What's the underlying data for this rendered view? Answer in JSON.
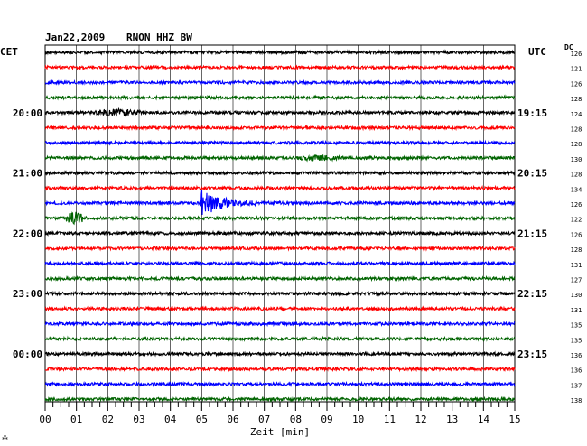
{
  "header": {
    "date": "Jan22,2009",
    "station": "RNON HHZ BW",
    "left_zone": "CET",
    "right_zone": "UTC",
    "dc_label": "DC"
  },
  "footer": {
    "xlabel": "Zeit [min]",
    "corner_mark": "⁂"
  },
  "colors": {
    "trace_cycle": [
      "#000000",
      "#ff0000",
      "#0000ff",
      "#006400"
    ],
    "grid": "#000000",
    "background": "#ffffff"
  },
  "chart_data": {
    "type": "line",
    "title": "Jan22,2009 RNON HHZ BW",
    "xlabel": "Zeit [min]",
    "xlim": [
      0,
      15
    ],
    "x_ticks": [
      "00",
      "01",
      "02",
      "03",
      "04",
      "05",
      "06",
      "07",
      "08",
      "09",
      "10",
      "11",
      "12",
      "13",
      "14",
      "15"
    ],
    "minor_tick_step_min": 0.25,
    "trace_count": 24,
    "trace_minutes": 15,
    "left_time_labels": [
      {
        "trace": 4,
        "label": "20:00"
      },
      {
        "trace": 8,
        "label": "21:00"
      },
      {
        "trace": 12,
        "label": "22:00"
      },
      {
        "trace": 16,
        "label": "23:00"
      },
      {
        "trace": 20,
        "label": "00:00"
      }
    ],
    "right_time_labels": [
      {
        "trace": 4,
        "label": "19:15"
      },
      {
        "trace": 8,
        "label": "20:15"
      },
      {
        "trace": 12,
        "label": "21:15"
      },
      {
        "trace": 16,
        "label": "22:15"
      },
      {
        "trace": 20,
        "label": "23:15"
      }
    ],
    "dc_offsets": [
      126,
      121,
      126,
      128,
      124,
      128,
      128,
      130,
      128,
      134,
      126,
      122,
      126,
      128,
      131,
      127,
      130,
      131,
      135,
      135,
      136,
      136,
      137,
      138
    ],
    "events": [
      {
        "trace": 4,
        "start_min": 1.5,
        "end_min": 3.2,
        "peak_amplitude": 0.45,
        "kind": "burst"
      },
      {
        "trace": 7,
        "start_min": 8.0,
        "end_min": 9.5,
        "peak_amplitude": 0.35,
        "kind": "burst"
      },
      {
        "trace": 10,
        "start_min": 4.95,
        "end_min": 9.0,
        "peak_amplitude": 2.4,
        "kind": "earthquake"
      },
      {
        "trace": 11,
        "start_min": 0.6,
        "end_min": 1.3,
        "peak_amplitude": 0.9,
        "kind": "burst"
      }
    ]
  }
}
